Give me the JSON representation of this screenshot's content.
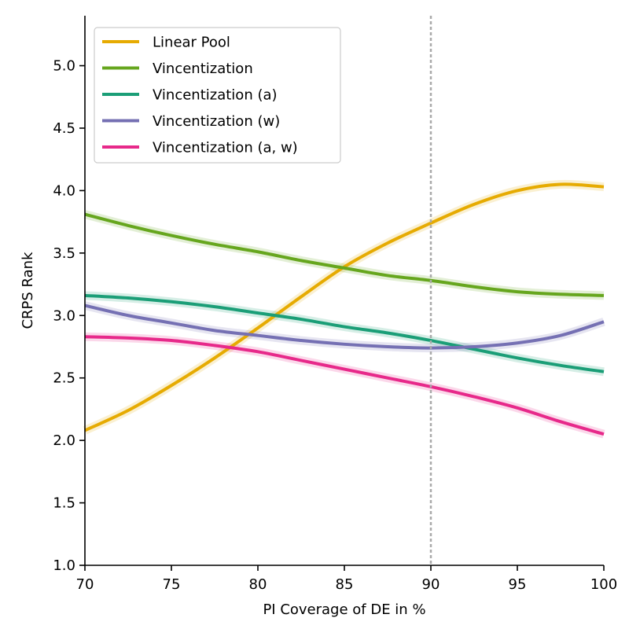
{
  "chart_data": {
    "type": "line",
    "title": "",
    "xlabel": "PI Coverage of DE in %",
    "ylabel": "CRPS Rank",
    "xlim": [
      70,
      100
    ],
    "ylim": [
      1.0,
      5.4
    ],
    "xticks": [
      70,
      75,
      80,
      85,
      90,
      95,
      100
    ],
    "yticks": [
      1.0,
      1.5,
      2.0,
      2.5,
      3.0,
      3.5,
      4.0,
      4.5,
      5.0
    ],
    "xtick_labels": [
      "70",
      "75",
      "80",
      "85",
      "90",
      "95",
      "100"
    ],
    "ytick_labels": [
      "1.0",
      "1.5",
      "2.0",
      "2.5",
      "3.0",
      "3.5",
      "4.0",
      "4.5",
      "5.0"
    ],
    "grid": false,
    "legend_position": "top-left",
    "reference_line": {
      "x": 90,
      "color": "#aaaaaa",
      "style": "dotted"
    },
    "x": [
      70,
      72.5,
      75,
      77.5,
      80,
      82.5,
      85,
      87.5,
      90,
      92.5,
      95,
      97.5,
      100
    ],
    "series": [
      {
        "name": "Linear Pool",
        "color": "#e6ab02",
        "values": [
          2.08,
          2.24,
          2.44,
          2.66,
          2.9,
          3.15,
          3.39,
          3.58,
          3.74,
          3.89,
          4.0,
          4.05,
          4.03
        ]
      },
      {
        "name": "Vincentization",
        "color": "#66a61e",
        "values": [
          3.81,
          3.72,
          3.64,
          3.57,
          3.51,
          3.44,
          3.38,
          3.32,
          3.28,
          3.23,
          3.19,
          3.17,
          3.16
        ]
      },
      {
        "name": "Vincentization (a)",
        "color": "#1b9e77",
        "values": [
          3.16,
          3.14,
          3.11,
          3.07,
          3.02,
          2.97,
          2.91,
          2.86,
          2.8,
          2.73,
          2.66,
          2.6,
          2.55
        ]
      },
      {
        "name": "Vincentization (w)",
        "color": "#7570b3",
        "values": [
          3.08,
          3.0,
          2.94,
          2.88,
          2.84,
          2.8,
          2.77,
          2.75,
          2.74,
          2.75,
          2.78,
          2.84,
          2.95
        ]
      },
      {
        "name": "Vincentization (a, w)",
        "color": "#e7298a",
        "values": [
          2.83,
          2.82,
          2.8,
          2.76,
          2.71,
          2.64,
          2.57,
          2.5,
          2.43,
          2.35,
          2.26,
          2.15,
          2.05
        ]
      }
    ]
  }
}
